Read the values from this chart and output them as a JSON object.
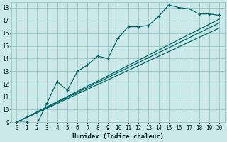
{
  "xlabel": "Humidex (Indice chaleur)",
  "ylabel": "",
  "xlim": [
    -0.5,
    20.5
  ],
  "ylim": [
    9,
    18.4
  ],
  "yticks": [
    9,
    10,
    11,
    12,
    13,
    14,
    15,
    16,
    17,
    18
  ],
  "xticks": [
    0,
    1,
    2,
    3,
    4,
    5,
    6,
    7,
    8,
    9,
    10,
    11,
    12,
    13,
    14,
    15,
    16,
    17,
    18,
    19,
    20
  ],
  "bg_color": "#cce8e8",
  "grid_color": "#99cccc",
  "line_color": "#006666",
  "curvy_x": [
    0,
    1,
    2,
    3,
    4,
    5,
    6,
    7,
    8,
    9,
    10,
    11,
    12,
    13,
    14,
    15,
    16,
    17,
    18,
    19,
    20
  ],
  "curvy_y": [
    9.0,
    9.0,
    8.85,
    10.5,
    12.2,
    11.5,
    13.0,
    13.5,
    14.2,
    14.0,
    15.6,
    16.5,
    16.5,
    16.6,
    17.3,
    18.2,
    18.0,
    17.9,
    17.5,
    17.5,
    17.4
  ],
  "line2_x": [
    0,
    20
  ],
  "line2_y": [
    9.0,
    16.8
  ],
  "line3_x": [
    0,
    20
  ],
  "line3_y": [
    9.0,
    17.1
  ],
  "line4_x": [
    0,
    20
  ],
  "line4_y": [
    9.0,
    16.4
  ]
}
